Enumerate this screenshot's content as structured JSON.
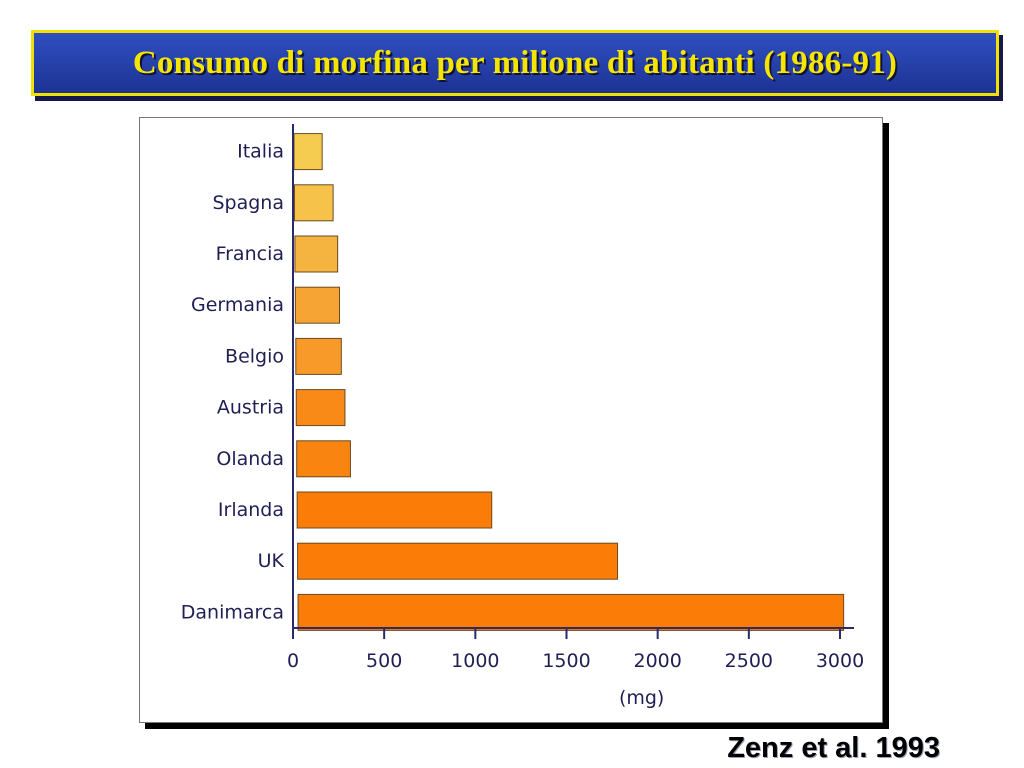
{
  "slide": {
    "title": "Consumo di morfina per milione di abitanti (1986-91)",
    "citation": "Zenz et al. 1993"
  },
  "colors": {
    "title_bg": "#2440a8",
    "title_border": "#f2e000",
    "title_text": "#f5e600",
    "bar_light": "#f6c24a",
    "bar_dark": "#fb7d08",
    "axis": "#2a2a6a"
  },
  "chart_data": {
    "type": "bar",
    "orientation": "horizontal",
    "title": "",
    "xlabel": "(mg)",
    "ylabel": "",
    "categories": [
      "Italia",
      "Spagna",
      "Francia",
      "Germania",
      "Belgio",
      "Austria",
      "Olanda",
      "Irlanda",
      "UK",
      "Danimarca"
    ],
    "values": [
      160,
      220,
      245,
      255,
      265,
      285,
      315,
      1090,
      1780,
      3020
    ],
    "bar_colors": [
      "#f6cc50",
      "#f6c24a",
      "#f5b340",
      "#f6a534",
      "#f79a2a",
      "#f98a18",
      "#fa8410",
      "#fb7d08",
      "#fb7d08",
      "#fb7d08"
    ],
    "xlim": [
      0,
      3000
    ],
    "xticks": [
      0,
      500,
      1000,
      1500,
      2000,
      2500,
      3000
    ],
    "xtick_labels": [
      "0",
      "500",
      "1000",
      "1500",
      "2000",
      "2500",
      "3000"
    ],
    "grid": false,
    "legend": "none"
  }
}
